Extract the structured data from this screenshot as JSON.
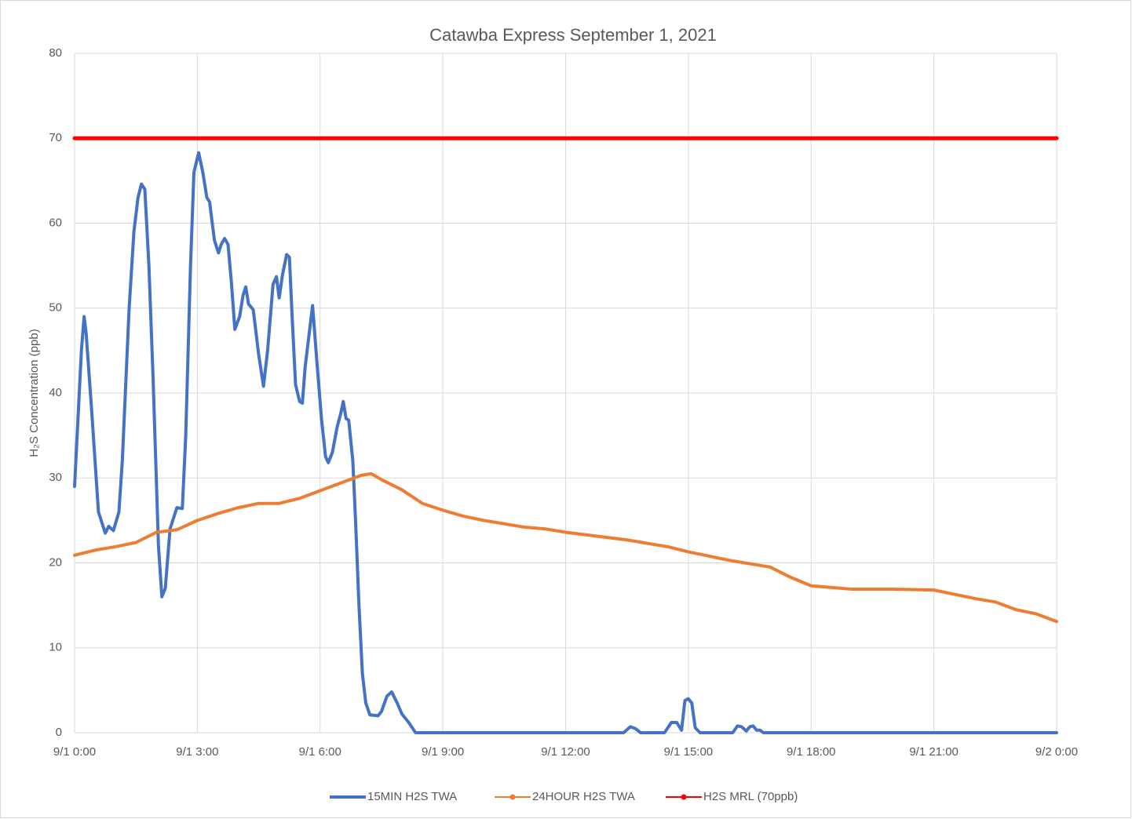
{
  "chart_data": {
    "type": "line",
    "title": "Catawba Express September 1, 2021",
    "y_label": "H₂S Concentration (ppb)",
    "ylim": [
      0,
      80
    ],
    "yticks": [
      0,
      10,
      20,
      30,
      40,
      50,
      60,
      70,
      80
    ],
    "xlim": [
      "9/1 0:00",
      "9/2 0:00"
    ],
    "xticks": [
      "9/1 0:00",
      "9/1 3:00",
      "9/1 6:00",
      "9/1 9:00",
      "9/1 12:00",
      "9/1 15:00",
      "9/1 18:00",
      "9/1 21:00",
      "9/2 0:00"
    ],
    "grid": true,
    "legend": "bottom",
    "series": [
      {
        "name": "15MIN H2S TWA",
        "color": "#4472c4",
        "marker": false,
        "x": [
          "9/1 0:00",
          "9/1 0:05",
          "9/1 0:10",
          "9/1 0:14",
          "9/1 0:17",
          "9/1 0:25",
          "9/1 0:35",
          "9/1 0:45",
          "9/1 0:50",
          "9/1 0:57",
          "9/1 1:05",
          "9/1 1:10",
          "9/1 1:20",
          "9/1 1:27",
          "9/1 1:33",
          "9/1 1:38",
          "9/1 1:43",
          "9/1 1:49",
          "9/1 1:55",
          "9/1 2:03",
          "9/1 2:08",
          "9/1 2:13",
          "9/1 2:20",
          "9/1 2:30",
          "9/1 2:38",
          "9/1 2:43",
          "9/1 2:50",
          "9/1 2:55",
          "9/1 3:02",
          "9/1 3:08",
          "9/1 3:14",
          "9/1 3:18",
          "9/1 3:25",
          "9/1 3:31",
          "9/1 3:35",
          "9/1 3:40",
          "9/1 3:45",
          "9/1 3:50",
          "9/1 3:55",
          "9/1 4:02",
          "9/1 4:07",
          "9/1 4:11",
          "9/1 4:15",
          "9/1 4:22",
          "9/1 4:30",
          "9/1 4:37",
          "9/1 4:43",
          "9/1 4:51",
          "9/1 4:56",
          "9/1 5:00",
          "9/1 5:05",
          "9/1 5:11",
          "9/1 5:15",
          "9/1 5:19",
          "9/1 5:24",
          "9/1 5:30",
          "9/1 5:34",
          "9/1 5:38",
          "9/1 5:44",
          "9/1 5:49",
          "9/1 5:55",
          "9/1 6:02",
          "9/1 6:08",
          "9/1 6:12",
          "9/1 6:18",
          "9/1 6:25",
          "9/1 6:30",
          "9/1 6:34",
          "9/1 6:38",
          "9/1 6:42",
          "9/1 6:48",
          "9/1 6:52",
          "9/1 6:57",
          "9/1 7:02",
          "9/1 7:07",
          "9/1 7:13",
          "9/1 7:25",
          "9/1 7:30",
          "9/1 7:38",
          "9/1 7:45",
          "9/1 7:53",
          "9/1 8:00",
          "9/1 8:10",
          "9/1 8:20",
          "9/1 13:25",
          "9/1 13:35",
          "9/1 13:42",
          "9/1 13:50",
          "9/1 14:25",
          "9/1 14:35",
          "9/1 14:43",
          "9/1 14:50",
          "9/1 14:55",
          "9/1 15:00",
          "9/1 15:05",
          "9/1 15:10",
          "9/1 15:17",
          "9/1 16:05",
          "9/1 16:12",
          "9/1 16:18",
          "9/1 16:25",
          "9/1 16:30",
          "9/1 16:35",
          "9/1 16:40",
          "9/1 16:45",
          "9/1 16:50",
          "9/2 0:00"
        ],
        "values": [
          29,
          37,
          45,
          49,
          47,
          38,
          26,
          23.5,
          24.3,
          23.8,
          26,
          32,
          50,
          59,
          63,
          64.6,
          64,
          55,
          42,
          22,
          16,
          17,
          24,
          26.5,
          26.4,
          35,
          55,
          66,
          68.3,
          66,
          63,
          62.5,
          58,
          56.5,
          57.5,
          58.2,
          57.5,
          53,
          47.5,
          49,
          51.5,
          52.5,
          50.5,
          49.8,
          44.5,
          40.8,
          45,
          52.8,
          53.7,
          51.2,
          54,
          56.3,
          56,
          49,
          41,
          39,
          38.8,
          43,
          47,
          50.3,
          44,
          37,
          32.5,
          31.8,
          33,
          36,
          37.5,
          39,
          37,
          36.8,
          32,
          25,
          15,
          7,
          3.5,
          2.1,
          2,
          2.5,
          4.3,
          4.8,
          3.5,
          2.2,
          1.2,
          0,
          0,
          0.7,
          0.5,
          0,
          0,
          1.2,
          1.2,
          0.3,
          3.8,
          4,
          3.5,
          0.6,
          0,
          0,
          0.8,
          0.7,
          0.2,
          0.7,
          0.8,
          0.3,
          0.3,
          0,
          0
        ]
      },
      {
        "name": "24HOUR H2S TWA",
        "color": "#ed7d31",
        "marker": true,
        "x": [
          "9/1 0:00",
          "9/1 0:30",
          "9/1 1:00",
          "9/1 1:30",
          "9/1 2:00",
          "9/1 2:30",
          "9/1 3:00",
          "9/1 3:30",
          "9/1 4:00",
          "9/1 4:30",
          "9/1 5:00",
          "9/1 5:30",
          "9/1 6:00",
          "9/1 6:30",
          "9/1 7:00",
          "9/1 7:15",
          "9/1 7:30",
          "9/1 8:00",
          "9/1 8:30",
          "9/1 9:00",
          "9/1 9:30",
          "9/1 10:00",
          "9/1 10:30",
          "9/1 11:00",
          "9/1 11:30",
          "9/1 12:00",
          "9/1 12:30",
          "9/1 13:00",
          "9/1 13:30",
          "9/1 14:00",
          "9/1 14:30",
          "9/1 15:00",
          "9/1 15:30",
          "9/1 16:00",
          "9/1 16:30",
          "9/1 17:00",
          "9/1 17:30",
          "9/1 18:00",
          "9/1 18:30",
          "9/1 19:00",
          "9/1 20:00",
          "9/1 21:00",
          "9/1 21:30",
          "9/1 22:00",
          "9/1 22:30",
          "9/1 23:00",
          "9/1 23:30",
          "9/2 0:00"
        ],
        "values": [
          20.9,
          21.5,
          21.9,
          22.4,
          23.6,
          23.9,
          25,
          25.8,
          26.5,
          27,
          27,
          27.6,
          28.5,
          29.4,
          30.3,
          30.5,
          29.8,
          28.6,
          27,
          26.2,
          25.5,
          25,
          24.6,
          24.2,
          24,
          23.6,
          23.3,
          23,
          22.7,
          22.3,
          21.9,
          21.3,
          20.8,
          20.3,
          19.9,
          19.5,
          18.3,
          17.3,
          17.1,
          16.9,
          16.9,
          16.8,
          16.3,
          15.8,
          15.4,
          14.5,
          14,
          13.1
        ]
      },
      {
        "name": "H2S MRL (70ppb)",
        "color": "#ff0000",
        "marker": true,
        "x": [
          "9/1 0:00",
          "9/2 0:00"
        ],
        "values": [
          70,
          70
        ]
      }
    ]
  }
}
